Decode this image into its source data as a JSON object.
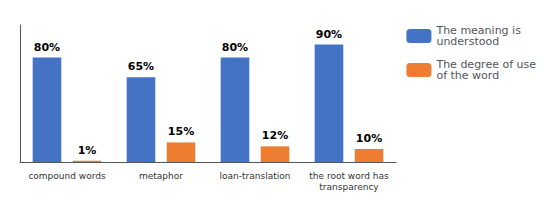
{
  "chart_data": {
    "type": "bar",
    "categories": [
      "compound words",
      "metaphor",
      "loan-translation",
      "the root word has\ntransparency"
    ],
    "series": [
      {
        "name": "The meaning is\nunderstood",
        "color": "#4472C4",
        "values": [
          80,
          65,
          80,
          90
        ],
        "value_labels": [
          "80%",
          "65%",
          "80%",
          "90%"
        ]
      },
      {
        "name": "The degree of use\nof the word",
        "color": "#ED7D31",
        "values": [
          1,
          15,
          12,
          10
        ],
        "value_labels": [
          "1%",
          "15%",
          "12%",
          "10%"
        ]
      }
    ],
    "ylim": [
      0,
      105
    ],
    "grid": false,
    "legend": "right",
    "data_labels": true,
    "tick_labels": "x"
  }
}
